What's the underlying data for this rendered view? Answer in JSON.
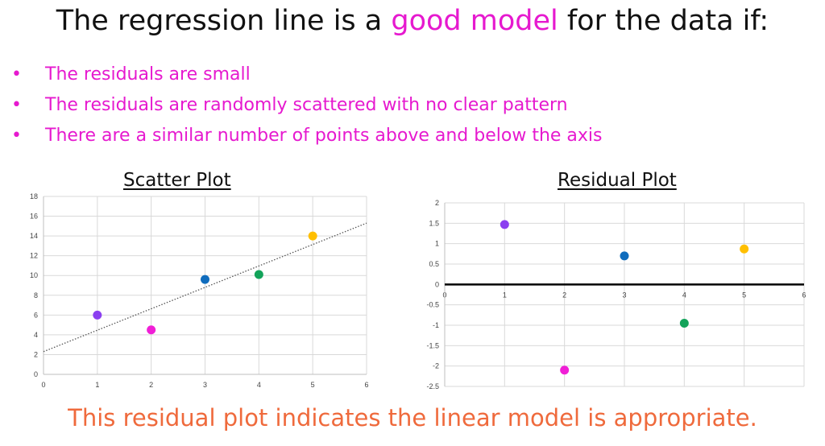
{
  "heading": {
    "prefix": "The regression line is a ",
    "highlight": "good model",
    "suffix": " for the data if:"
  },
  "bullets": [
    "The residuals are small",
    "The residuals are randomly scattered with no clear pattern",
    "There are a similar number of points above and below the axis"
  ],
  "bullet_symbol": "•",
  "conclusion": "This residual plot indicates the linear model is appropriate.",
  "colors": {
    "highlight": "#e619cf",
    "conclusion": "#ef6a3c",
    "point_colors": [
      "#8b3ff0",
      "#f01fd6",
      "#0f6cbd",
      "#13a35a",
      "#ffbf00"
    ]
  },
  "chart_data": [
    {
      "type": "scatter",
      "title": "Scatter Plot",
      "xlim": [
        0,
        6
      ],
      "ylim": [
        0,
        18
      ],
      "x_ticks": [
        0,
        1,
        2,
        3,
        4,
        5,
        6
      ],
      "y_ticks": [
        0,
        2,
        4,
        6,
        8,
        10,
        12,
        14,
        16,
        18
      ],
      "grid": true,
      "points": [
        {
          "x": 1,
          "y": 6
        },
        {
          "x": 2,
          "y": 4.5
        },
        {
          "x": 3,
          "y": 9.6
        },
        {
          "x": 4,
          "y": 10.1
        },
        {
          "x": 5,
          "y": 14
        }
      ],
      "trendline": {
        "type": "linear",
        "style": "dotted",
        "from": [
          0,
          2.3
        ],
        "to": [
          6,
          15.3
        ]
      }
    },
    {
      "type": "scatter",
      "title": "Residual Plot",
      "xlim": [
        0,
        6
      ],
      "ylim": [
        -2.5,
        2
      ],
      "x_ticks": [
        0,
        1,
        2,
        3,
        4,
        5,
        6
      ],
      "y_ticks": [
        -2.5,
        -2,
        -1.5,
        -1,
        -0.5,
        0,
        0.5,
        1,
        1.5,
        2
      ],
      "y_tick_labels": [
        "-2.5",
        "-2",
        "-1.5",
        "-1",
        "-0.5",
        "0",
        "0.5",
        "1",
        "1.5",
        "2"
      ],
      "grid": true,
      "zero_axis": true,
      "points": [
        {
          "x": 1,
          "y": 1.47
        },
        {
          "x": 2,
          "y": -2.1
        },
        {
          "x": 3,
          "y": 0.7
        },
        {
          "x": 4,
          "y": -0.95
        },
        {
          "x": 5,
          "y": 0.87
        }
      ]
    }
  ]
}
